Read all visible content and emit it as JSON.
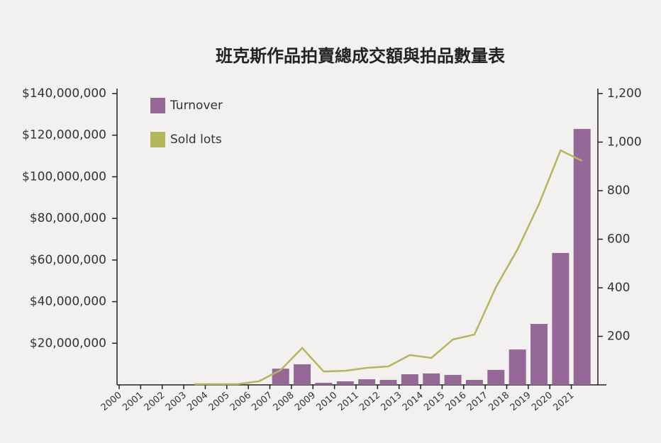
{
  "chart_data": {
    "type": "bar_line",
    "title": "班克斯作品拍賣總成交額與拍品數量表",
    "categories": [
      "2000",
      "2001",
      "2002",
      "2003",
      "2004",
      "2005",
      "2006",
      "2007",
      "2008",
      "2009",
      "2010",
      "2011",
      "2012",
      "2013",
      "2014",
      "2015",
      "2016",
      "2017",
      "2018",
      "2019",
      "2020",
      "2021"
    ],
    "series": [
      {
        "name": "Turnover",
        "type": "bar",
        "color": "#956897",
        "axis": "y",
        "values": [
          null,
          null,
          null,
          null,
          null,
          null,
          null,
          7800000,
          9900000,
          1000000,
          1700000,
          2700000,
          2400000,
          5100000,
          5500000,
          4800000,
          2400000,
          7200000,
          17000000,
          29300000,
          63400000,
          123000000
        ]
      },
      {
        "name": "Sold lots",
        "type": "line",
        "color": "#b2b75c",
        "axis": "y2",
        "values": [
          null,
          null,
          null,
          3,
          3,
          3,
          15,
          61,
          152,
          55,
          58,
          70,
          76,
          123,
          111,
          187,
          207,
          403,
          558,
          745,
          966,
          923
        ]
      }
    ],
    "ylim": [
      0,
      140000000
    ],
    "yticks": [
      {
        "value": 20000000,
        "label": "$20,000,000"
      },
      {
        "value": 40000000,
        "label": "$40,000,000"
      },
      {
        "value": 60000000,
        "label": "$60,000,000"
      },
      {
        "value": 80000000,
        "label": "$80,000,000"
      },
      {
        "value": 100000000,
        "label": "$100,000,000"
      },
      {
        "value": 120000000,
        "label": "$120,000,000"
      },
      {
        "value": 140000000,
        "label": "$140,000,000"
      }
    ],
    "y2lim": [
      0,
      1200
    ],
    "y2ticks": [
      200,
      400,
      600,
      800,
      {
        "value": 1000,
        "label": "1,000"
      },
      {
        "value": 1200,
        "label": "1,200"
      }
    ],
    "legend": "top-left"
  }
}
